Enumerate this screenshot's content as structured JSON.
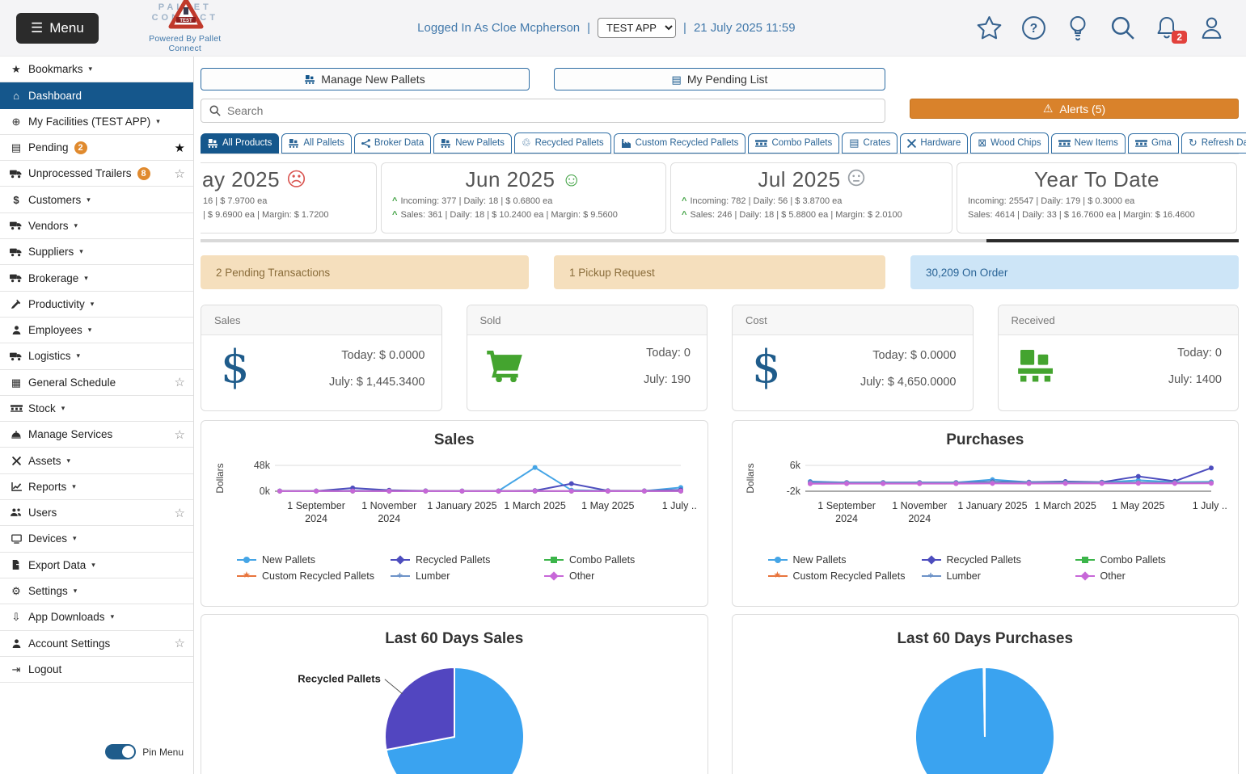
{
  "topbar": {
    "menu_label": "Menu",
    "logo": {
      "line1": "PALLET",
      "line2": "CONNECT",
      "badge": "TEST",
      "powered_by": "Powered By Pallet Connect"
    },
    "logged_in": "Logged In As Cloe Mcpherson",
    "sep": "|",
    "app_select": {
      "value": "TEST APP"
    },
    "datetime": "21 July 2025 11:59",
    "notification_count": "2"
  },
  "sidebar": {
    "items": [
      {
        "label": "Bookmarks",
        "icon": "star-icon",
        "caret": true
      },
      {
        "label": "Dashboard",
        "icon": "home-icon",
        "active": true
      },
      {
        "label": "My Facilities  (TEST APP)",
        "icon": "globe-icon",
        "caret": true
      },
      {
        "label": "Pending",
        "icon": "clipboard-icon",
        "badge": "2",
        "star": "filled"
      },
      {
        "label": "Unprocessed Trailers",
        "icon": "trailer-icon",
        "badge": "8",
        "star": "outline"
      },
      {
        "label": "Customers",
        "icon": "dollar-icon",
        "caret": true
      },
      {
        "label": "Vendors",
        "icon": "truck-icon",
        "caret": true
      },
      {
        "label": "Suppliers",
        "icon": "truck-icon",
        "caret": true
      },
      {
        "label": "Brokerage",
        "icon": "truck-icon",
        "caret": true
      },
      {
        "label": "Productivity",
        "icon": "hammer-icon",
        "caret": true
      },
      {
        "label": "Employees",
        "icon": "person-icon",
        "caret": true
      },
      {
        "label": "Logistics",
        "icon": "truck-icon",
        "caret": true
      },
      {
        "label": "General Schedule",
        "icon": "calendar-icon",
        "star": "outline"
      },
      {
        "label": "Stock",
        "icon": "pallet-flat-icon",
        "caret": true
      },
      {
        "label": "Manage Services",
        "icon": "service-icon",
        "star": "outline"
      },
      {
        "label": "Assets",
        "icon": "tools-icon",
        "caret": true
      },
      {
        "label": "Reports",
        "icon": "chart-icon",
        "caret": true
      },
      {
        "label": "Users",
        "icon": "users-icon",
        "star": "outline"
      },
      {
        "label": "Devices",
        "icon": "monitor-icon",
        "caret": true
      },
      {
        "label": "Export Data",
        "icon": "export-icon",
        "caret": true
      },
      {
        "label": "Settings",
        "icon": "gears-icon",
        "caret": true
      },
      {
        "label": "App Downloads",
        "icon": "download-icon",
        "caret": true
      },
      {
        "label": "Account Settings",
        "icon": "person-icon",
        "star": "outline"
      },
      {
        "label": "Logout",
        "icon": "logout-icon"
      }
    ],
    "pin_menu": "Pin Menu"
  },
  "actions": {
    "manage_new_pallets": "Manage New Pallets",
    "my_pending_list": "My Pending List",
    "search_placeholder": "Search",
    "alerts": "Alerts (5)"
  },
  "tabs": [
    {
      "label": "All Products",
      "icon": "pallet-icon",
      "active": true
    },
    {
      "label": "All Pallets",
      "icon": "pallet-icon"
    },
    {
      "label": "Broker Data",
      "icon": "share-icon"
    },
    {
      "label": "New Pallets",
      "icon": "pallet-icon"
    },
    {
      "label": "Recycled Pallets",
      "icon": "recycle-icon"
    },
    {
      "label": "Custom Recycled Pallets",
      "icon": "factory-icon"
    },
    {
      "label": "Combo Pallets",
      "icon": "pallet-flat-icon"
    },
    {
      "label": "Crates",
      "icon": "crate-icon"
    },
    {
      "label": "Hardware",
      "icon": "tools-icon"
    },
    {
      "label": "Wood Chips",
      "icon": "box-icon"
    },
    {
      "label": "New Items",
      "icon": "pallet-flat-icon"
    },
    {
      "label": "Gma",
      "icon": "pallet-flat-icon"
    },
    {
      "label": "Refresh Data",
      "icon": "refresh-icon",
      "refresh": true
    }
  ],
  "period_cards": [
    {
      "title": "ay 2025",
      "mood": "sad",
      "clipped": true,
      "lines": [
        {
          "caret": false,
          "text": "16 | $ 7.9700 ea"
        },
        {
          "caret": false,
          "text": "| $ 9.6900 ea | Margin: $ 1.7200"
        }
      ]
    },
    {
      "title": "Jun 2025",
      "mood": "happy",
      "lines": [
        {
          "caret": true,
          "text": "Incoming: 377 | Daily: 18 | $ 0.6800 ea"
        },
        {
          "caret": true,
          "text": "Sales: 361 | Daily: 18 | $ 10.2400 ea | Margin: $ 9.5600"
        }
      ]
    },
    {
      "title": "Jul 2025",
      "mood": "neutral",
      "lines": [
        {
          "caret": true,
          "text": "Incoming: 782 | Daily: 56 | $ 3.8700 ea"
        },
        {
          "caret": true,
          "text": "Sales: 246 | Daily: 18 | $ 5.8800 ea | Margin: $ 2.0100"
        }
      ]
    },
    {
      "title": "Year To Date",
      "mood": null,
      "lines": [
        {
          "caret": false,
          "text": "Incoming: 25547 | Daily: 179 | $ 0.3000 ea"
        },
        {
          "caret": false,
          "text": "Sales: 4614 | Daily: 33 | $ 16.7600 ea | Margin: $ 16.4600"
        }
      ]
    }
  ],
  "banners": [
    {
      "text": "2 Pending Transactions",
      "style": "tan"
    },
    {
      "text": "1 Pickup Request",
      "style": "tan2"
    },
    {
      "text": "30,209 On Order",
      "style": "blue"
    }
  ],
  "stat_cards": [
    {
      "title": "Sales",
      "icon": "dollar-icon",
      "rows": [
        {
          "label": "Today",
          "value": "$ 0.0000"
        },
        {
          "label": "July",
          "value": "$ 1,445.3400"
        }
      ]
    },
    {
      "title": "Sold",
      "icon": "cart-icon",
      "rows": [
        {
          "label": "Today",
          "value": "0"
        },
        {
          "label": "July",
          "value": "190"
        }
      ]
    },
    {
      "title": "Cost",
      "icon": "dollar-icon",
      "rows": [
        {
          "label": "Today",
          "value": "$ 0.0000"
        },
        {
          "label": "July",
          "value": "$ 4,650.0000"
        }
      ]
    },
    {
      "title": "Received",
      "icon": "pallet-big-icon",
      "rows": [
        {
          "label": "Today",
          "value": "0"
        },
        {
          "label": "July",
          "value": "1400"
        }
      ]
    }
  ],
  "chart_data": [
    {
      "type": "line",
      "title": "Sales",
      "ylabel": "Dollars",
      "yticks": [
        "48k",
        "0k"
      ],
      "ylim": [
        0,
        48000
      ],
      "x": [
        "Aug 2024",
        "Sep 2024",
        "Oct 2024",
        "Nov 2024",
        "Dec 2024",
        "Jan 2025",
        "Feb 2025",
        "Mar 2025",
        "Apr 2025",
        "May 2025",
        "Jun 2025",
        "Jul 2025"
      ],
      "xticks": [
        {
          "label": "1 September",
          "sub": "2024",
          "i": 1
        },
        {
          "label": "1 November",
          "sub": "2024",
          "i": 3
        },
        {
          "label": "1 January 2025",
          "i": 5
        },
        {
          "label": "1 March 2025",
          "i": 7
        },
        {
          "label": "1 May 2025",
          "i": 9
        },
        {
          "label": "1 July ...",
          "i": 11
        }
      ],
      "series": [
        {
          "name": "New Pallets",
          "color": "#45a5e6",
          "marker": "circle",
          "values": [
            500,
            600,
            1200,
            700,
            600,
            500,
            600,
            44000,
            2000,
            700,
            600,
            7000
          ]
        },
        {
          "name": "Recycled Pallets",
          "color": "#4d4dbe",
          "marker": "diamond",
          "values": [
            300,
            400,
            6000,
            1800,
            700,
            400,
            500,
            1200,
            14000,
            900,
            700,
            2500
          ]
        },
        {
          "name": "Combo Pallets",
          "color": "#3cb54a",
          "marker": "square",
          "values": [
            200,
            200,
            250,
            220,
            200,
            210,
            220,
            240,
            230,
            210,
            200,
            300
          ]
        },
        {
          "name": "Custom Recycled Pallets",
          "color": "#e8743c",
          "marker": "star",
          "values": [
            150,
            160,
            170,
            150,
            160,
            150,
            160,
            180,
            170,
            160,
            150,
            200
          ]
        },
        {
          "name": "Lumber",
          "color": "#6d93c8",
          "marker": "cross",
          "values": [
            100,
            110,
            120,
            100,
            110,
            100,
            110,
            130,
            120,
            110,
            100,
            150
          ]
        },
        {
          "name": "Other",
          "color": "#c767d8",
          "marker": "diamond",
          "values": [
            250,
            260,
            300,
            270,
            260,
            250,
            260,
            300,
            280,
            260,
            250,
            350
          ]
        }
      ],
      "legend_position": "bottom",
      "grid": true
    },
    {
      "type": "line",
      "title": "Purchases",
      "ylabel": "Dollars",
      "yticks": [
        "6k",
        "-2k"
      ],
      "ylim": [
        -2000,
        6000
      ],
      "x": [
        "Aug 2024",
        "Sep 2024",
        "Oct 2024",
        "Nov 2024",
        "Dec 2024",
        "Jan 2025",
        "Feb 2025",
        "Mar 2025",
        "Apr 2025",
        "May 2025",
        "Jun 2025",
        "Jul 2025"
      ],
      "xticks": [
        {
          "label": "1 September",
          "sub": "2024",
          "i": 1
        },
        {
          "label": "1 November",
          "sub": "2024",
          "i": 3
        },
        {
          "label": "1 January 2025",
          "i": 5
        },
        {
          "label": "1 March 2025",
          "i": 7
        },
        {
          "label": "1 May 2025",
          "i": 9
        },
        {
          "label": "1 July ...",
          "i": 11
        }
      ],
      "series": [
        {
          "name": "New Pallets",
          "color": "#45a5e6",
          "marker": "circle",
          "values": [
            1000,
            700,
            700,
            700,
            700,
            1600,
            800,
            800,
            700,
            1400,
            800,
            900
          ]
        },
        {
          "name": "Recycled Pallets",
          "color": "#4d4dbe",
          "marker": "diamond",
          "values": [
            800,
            700,
            700,
            700,
            700,
            900,
            800,
            1000,
            800,
            2600,
            1100,
            5200
          ]
        },
        {
          "name": "Combo Pallets",
          "color": "#3cb54a",
          "marker": "square",
          "values": [
            600,
            600,
            600,
            600,
            600,
            700,
            650,
            700,
            650,
            700,
            650,
            700
          ]
        },
        {
          "name": "Custom Recycled Pallets",
          "color": "#e8743c",
          "marker": "star",
          "values": [
            500,
            550,
            550,
            550,
            550,
            600,
            580,
            620,
            600,
            620,
            600,
            650
          ]
        },
        {
          "name": "Lumber",
          "color": "#6d93c8",
          "marker": "cross",
          "values": [
            700,
            650,
            650,
            650,
            650,
            700,
            680,
            700,
            680,
            700,
            680,
            700
          ]
        },
        {
          "name": "Other",
          "color": "#c767d8",
          "marker": "diamond",
          "values": [
            300,
            350,
            350,
            350,
            350,
            400,
            380,
            420,
            400,
            450,
            400,
            450
          ]
        }
      ],
      "legend_position": "bottom",
      "grid": true
    },
    {
      "type": "pie",
      "title": "Last 60 Days Sales",
      "slices": [
        {
          "value": 72,
          "color": "#3aa3f0"
        },
        {
          "value": 28,
          "color": "#5246c0",
          "label": "Recycled Pallets"
        }
      ]
    },
    {
      "type": "pie",
      "title": "Last 60 Days Purchases",
      "slices": [
        {
          "value": 99.7,
          "color": "#3aa3f0"
        },
        {
          "value": 0.3,
          "color": "#3aa3f0"
        }
      ]
    }
  ],
  "colors": {
    "accent_blue": "#15578c",
    "link_blue": "#4279ab",
    "tab_blue": "#2e6da4",
    "orange": "#d9822b",
    "badge_orange": "#e08a2e",
    "tan_banner": "#f5dfbd",
    "blue_banner": "#cde5f7"
  }
}
